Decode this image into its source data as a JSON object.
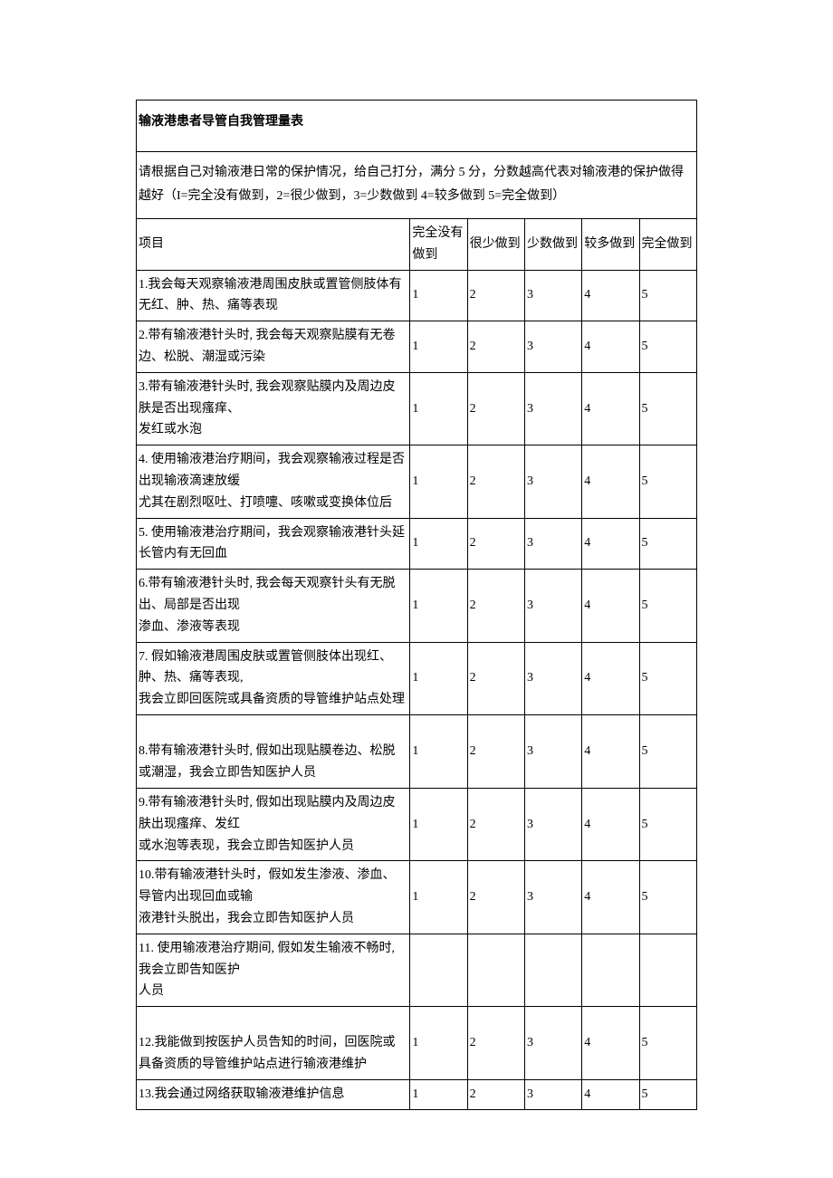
{
  "title": "输液港患者导管自我管理量表",
  "intro": "请根据自己对输液港日常的保护情况，给自己打分，满分 5 分，分数越高代表对输液港的保护做得越好（I=完全没有做到，2=很少做到，3=少数做到 4=较多做到 5=完全做到）",
  "columns": {
    "item": "项目",
    "c1": "完全没有做到",
    "c2": "很少做到",
    "c3": "少数做到",
    "c4": "较多做到",
    "c5": "完全做到"
  },
  "ratings": [
    "1",
    "2",
    "3",
    "4",
    "5"
  ],
  "rows": [
    {
      "text": "1.我会每天观察输液港周围皮肤或置管侧肢体有无红、肿、热、痛等表现",
      "r": [
        "1",
        "2",
        "3",
        "4",
        "5"
      ]
    },
    {
      "text": "2.带有输液港针头时, 我会每天观察贴膜有无卷边、松脱、潮湿或污染",
      "r": [
        "1",
        "2",
        "3",
        "4",
        "5"
      ]
    },
    {
      "text": "3.带有输液港针头时, 我会观察贴膜内及周边皮肤是否出现瘙痒、\n发红或水泡",
      "r": [
        "1",
        "2",
        "3",
        "4",
        "5"
      ]
    },
    {
      "text": "4. 使用输液港治疗期间，我会观察输液过程是否出现输液滴速放缓\n尤其在剧烈呕吐、打喷嚏、咳嗽或变换体位后",
      "r": [
        "1",
        "2",
        "3",
        "4",
        "5"
      ]
    },
    {
      "text": "5. 使用输液港治疗期间，我会观察输液港针头延长管内有无回血",
      "r": [
        "1",
        "2",
        "3",
        "4",
        "5"
      ]
    },
    {
      "text": "6.带有输液港针头时, 我会每天观察针头有无脱出、局部是否出现\n渗血、渗液等表现",
      "r": [
        "1",
        "2",
        "3",
        "4",
        "5"
      ]
    },
    {
      "text": "7. 假如输液港周围皮肤或置管侧肢体出现红、肿、热、痛等表现,\n我会立即回医院或具备资质的导管维护站点处理",
      "r": [
        "1",
        "2",
        "3",
        "4",
        "5"
      ]
    },
    {
      "text": "\n8.带有输液港针头时, 假如出现贴膜卷边、松脱或潮湿，我会立即告知医护人员",
      "r": [
        "1",
        "2",
        "3",
        "4",
        "5"
      ],
      "tall": true
    },
    {
      "text": "9.带有输液港针头时, 假如出现贴膜内及周边皮肤出现瘙痒、发红\n或水泡等表现，我会立即告知医护人员",
      "r": [
        "1",
        "2",
        "3",
        "4",
        "5"
      ]
    },
    {
      "text": "10.带有输液港针头时，假如发生渗液、渗血、导管内出现回血或输\n液港针头脱出，我会立即告知医护人员",
      "r": [
        "1",
        "2",
        "3",
        "4",
        "5"
      ]
    },
    {
      "text": "11. 使用输液港治疗期间, 假如发生输液不畅时, 我会立即告知医护\n人员",
      "r": [
        "",
        "",
        "",
        "",
        ""
      ]
    },
    {
      "text": "\n12.我能做到按医护人员告知的时间，回医院或具备资质的导管维护站点进行输液港维护",
      "r": [
        "1",
        "2",
        "3",
        "4",
        "5"
      ],
      "tall": true
    },
    {
      "text": "13.我会通过网络获取输液港维护信息",
      "r": [
        "1",
        "2",
        "3",
        "4",
        "5"
      ]
    }
  ]
}
